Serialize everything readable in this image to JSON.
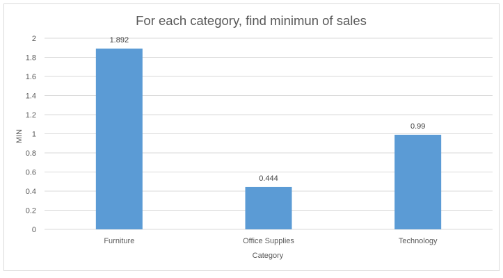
{
  "chart_data": {
    "type": "bar",
    "title": "For each category, find minimun of sales",
    "xlabel": "Category",
    "ylabel": "MIN",
    "categories": [
      "Furniture",
      "Office Supplies",
      "Technology"
    ],
    "values": [
      1.892,
      0.444,
      0.99
    ],
    "data_labels": [
      "1.892",
      "0.444",
      "0.99"
    ],
    "ylim": [
      0,
      2
    ],
    "yticks": [
      "0",
      "0.2",
      "0.4",
      "0.6",
      "0.8",
      "1",
      "1.2",
      "1.4",
      "1.6",
      "1.8",
      "2"
    ],
    "grid": true,
    "legend": "none",
    "bar_color": "#5b9bd5",
    "grid_color": "#d9d9d9"
  }
}
